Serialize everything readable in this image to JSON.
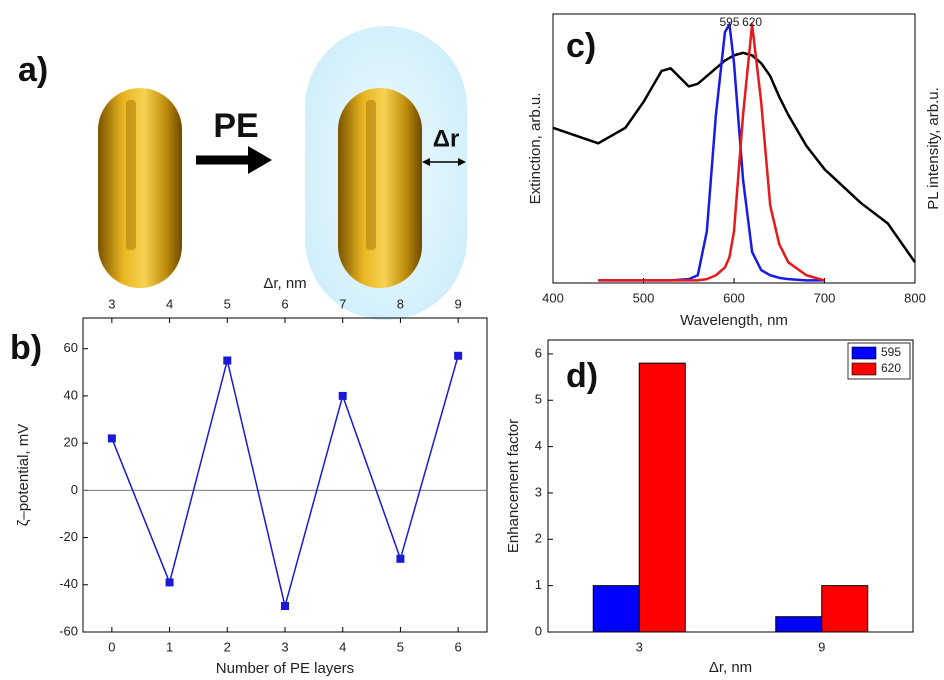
{
  "panel_a": {
    "label": "a)",
    "arrow_label": "PE",
    "shell_label": "Δr"
  },
  "chart_data": [
    {
      "type": "line",
      "panel_label": "b)",
      "x": [
        0,
        1,
        2,
        3,
        4,
        5,
        6
      ],
      "values": [
        22,
        -39,
        55,
        -49,
        40,
        -29,
        57
      ],
      "color": "#1a1ad6",
      "xlim": [
        -0.5,
        6.5
      ],
      "xticks": [
        0,
        1,
        2,
        3,
        4,
        5,
        6
      ],
      "x2ticks": [
        {
          "value": 0,
          "label": "3"
        },
        {
          "value": 1,
          "label": "4"
        },
        {
          "value": 2,
          "label": "5"
        },
        {
          "value": 3,
          "label": "6"
        },
        {
          "value": 4,
          "label": "7"
        },
        {
          "value": 5,
          "label": "8"
        },
        {
          "value": 6,
          "label": "9"
        }
      ],
      "x2label": "Δr, nm",
      "ylim": [
        -60,
        73
      ],
      "yticks": [
        -60,
        -40,
        -20,
        0,
        20,
        40,
        60
      ],
      "reference_line": 0,
      "xlabel": "Number of PE layers",
      "ylabel": "ζ–potential, mV"
    },
    {
      "type": "line",
      "panel_label": "c)",
      "x": [
        400,
        450,
        480,
        500,
        520,
        530,
        550,
        560,
        570,
        580,
        590,
        595,
        600,
        610,
        620,
        630,
        640,
        650,
        660,
        680,
        700,
        740,
        770,
        800
      ],
      "series": [
        {
          "color": "#000000",
          "values": [
            0.6,
            0.54,
            0.6,
            0.7,
            0.82,
            0.83,
            0.76,
            0.77,
            0.8,
            0.83,
            0.86,
            0.87,
            0.88,
            0.89,
            0.88,
            0.85,
            0.8,
            0.72,
            0.65,
            0.53,
            0.44,
            0.31,
            0.23,
            0.08
          ]
        },
        {
          "color": "#1a1ae6",
          "axis": "y2",
          "values": [
            null,
            0.01,
            0.01,
            0.01,
            0.01,
            0.01,
            0.015,
            0.03,
            0.2,
            0.65,
            0.97,
            1.0,
            0.85,
            0.4,
            0.12,
            0.05,
            0.03,
            0.02,
            0.015,
            0.01,
            0.01,
            null,
            null,
            null
          ]
        },
        {
          "color": "#e61a1a",
          "axis": "y2",
          "values": [
            null,
            0.01,
            0.01,
            0.01,
            0.01,
            0.01,
            0.01,
            0.01,
            0.015,
            0.03,
            0.06,
            0.1,
            0.2,
            0.65,
            1.0,
            0.7,
            0.3,
            0.15,
            0.08,
            0.03,
            0.01,
            null,
            null,
            null
          ]
        }
      ],
      "annotations": [
        {
          "text": "595",
          "x": 595
        },
        {
          "text": "620",
          "x": 620
        }
      ],
      "xlim": [
        400,
        800
      ],
      "xticks": [
        400,
        500,
        600,
        700,
        800
      ],
      "ylim": [
        0,
        1.04
      ],
      "y2lim": [
        0,
        1.04
      ],
      "xlabel": "Wavelength, nm",
      "ylabel": "Extinction, arb.u.",
      "y2label": "PL intensity, arb.u."
    },
    {
      "type": "bar",
      "panel_label": "d)",
      "categories": [
        "3",
        "9"
      ],
      "series": [
        {
          "name": "595",
          "color": "#0000ff",
          "values": [
            1.0,
            0.33
          ]
        },
        {
          "name": "620",
          "color": "#ff0000",
          "values": [
            5.8,
            1.0
          ]
        }
      ],
      "ylim": [
        0,
        6.3
      ],
      "yticks": [
        0,
        1,
        2,
        3,
        4,
        5,
        6
      ],
      "legend": "upper-right",
      "xlabel": "Δr, nm",
      "ylabel": "Enhancement factor"
    }
  ]
}
